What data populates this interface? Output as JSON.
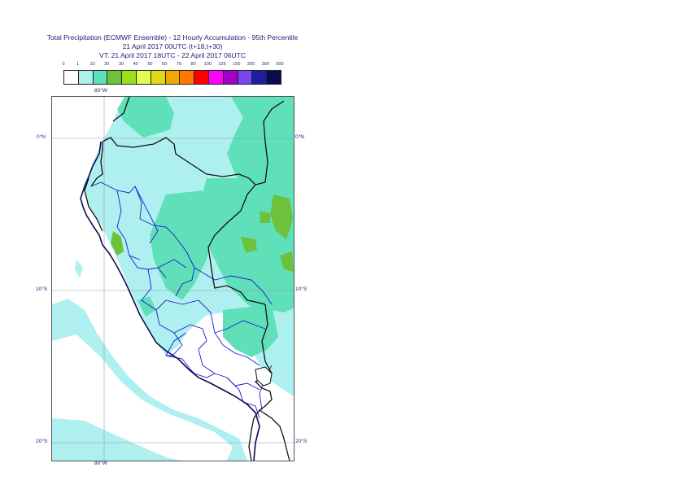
{
  "title": {
    "line1": "Total Precipitation (ECMWF Ensemble) - 12 Hourly Accumulation - 95th Percentile",
    "line2": "21 April 2017 00UTC (t+18,t+30)",
    "line3": "VT: 21 April 2017 18UTC - 22 April 2017 06UTC"
  },
  "legend": {
    "ticks": [
      "0",
      "1",
      "10",
      "20",
      "30",
      "40",
      "50",
      "60",
      "70",
      "80",
      "100",
      "125",
      "150",
      "200",
      "300",
      "500"
    ],
    "colors": [
      "#ffffff",
      "#aef0f0",
      "#5fe0b8",
      "#6cc23a",
      "#9be01a",
      "#e0ff50",
      "#e0d81a",
      "#f0a800",
      "#ff7800",
      "#ff0000",
      "#ff00ff",
      "#a000c8",
      "#7846f0",
      "#1e1ea0",
      "#0a0a50"
    ]
  },
  "axes": {
    "top_lon": "80°W",
    "bottom_lon": "80°W",
    "left_lats": [
      "0°N",
      "10°S",
      "20°S"
    ],
    "right_lats": [
      "0°N",
      "10°S",
      "20°S"
    ]
  }
}
